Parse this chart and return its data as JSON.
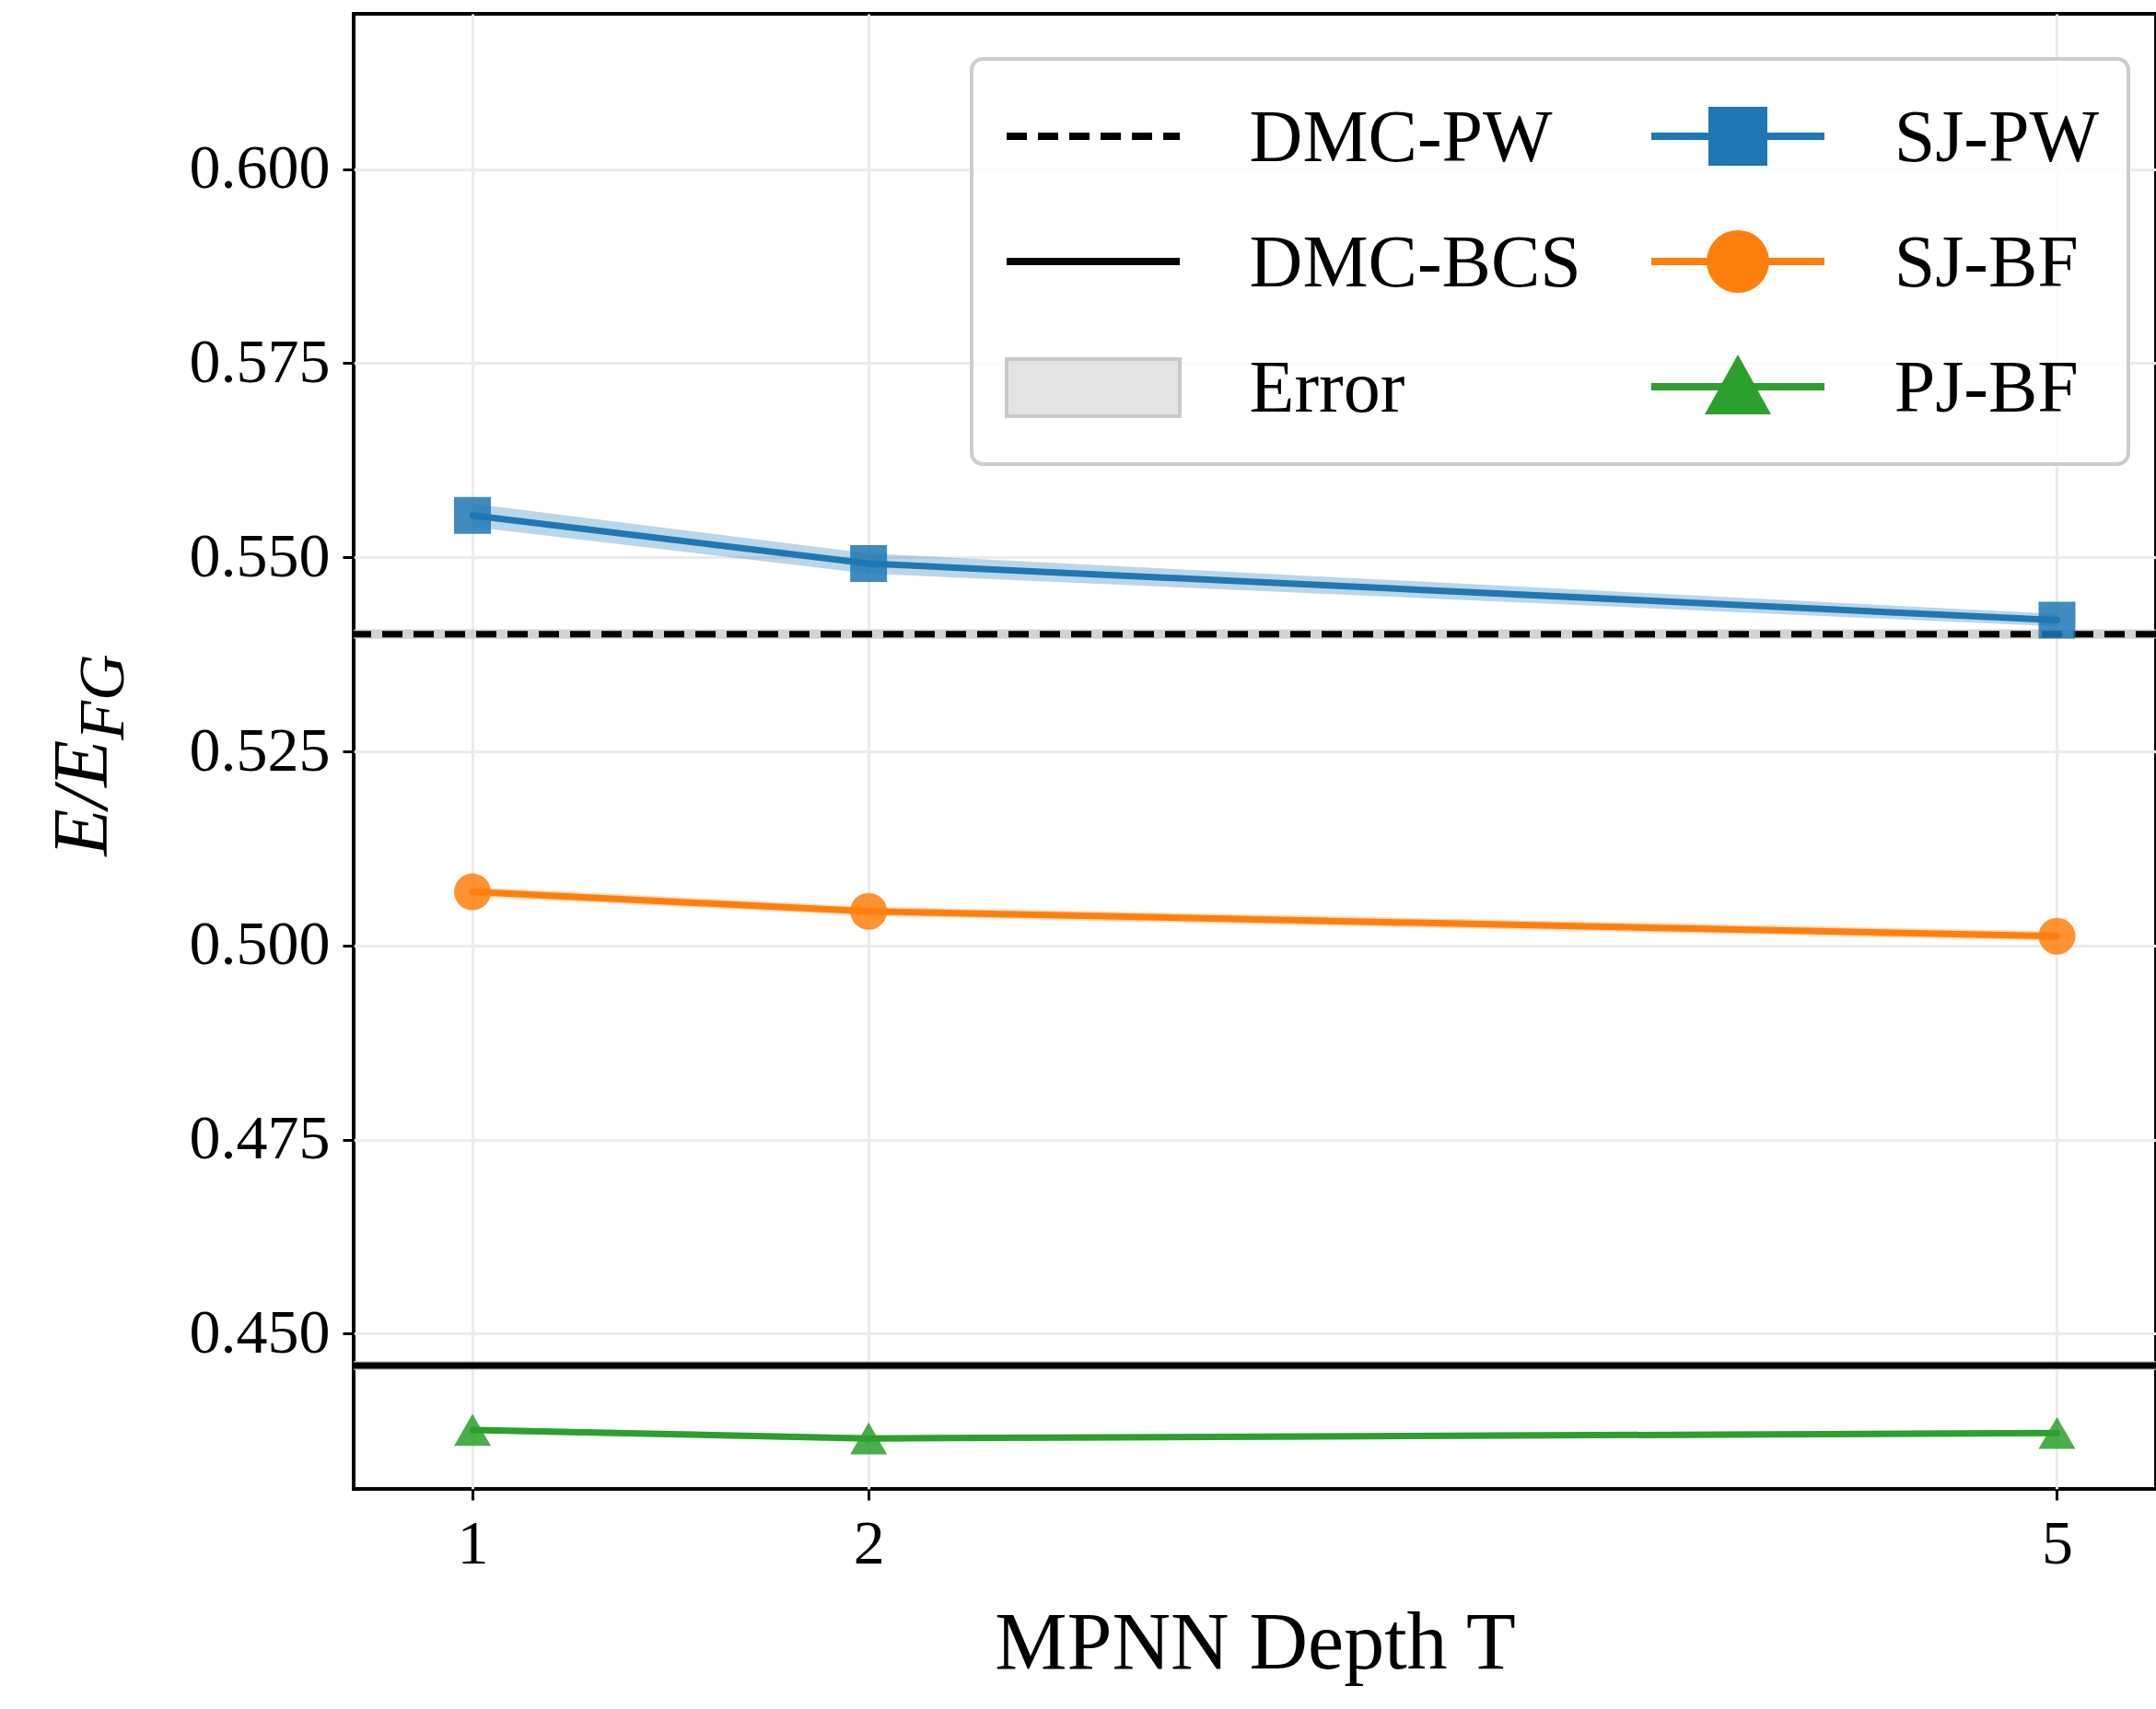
{
  "chart_data": {
    "type": "line",
    "xlabel": "MPNN Depth T",
    "ylabel": "E/E$_{FG}$",
    "x": [
      1,
      2,
      5
    ],
    "series": [
      {
        "name": "SJ-PW",
        "color": "#1f77b4",
        "marker": "square",
        "values": [
          0.5554,
          0.5492,
          0.5419
        ],
        "lower": [
          0.5539,
          0.5479,
          0.5411
        ],
        "upper": [
          0.5569,
          0.5505,
          0.5427
        ]
      },
      {
        "name": "SJ-BF",
        "color": "#ff7f0e",
        "marker": "circle",
        "values": [
          0.5069,
          0.5044,
          0.5012
        ],
        "lower": [
          0.5063,
          0.5038,
          0.5006
        ],
        "upper": [
          0.5075,
          0.505,
          0.5018
        ]
      },
      {
        "name": "PJ-BF",
        "color": "#2ca02c",
        "marker": "triangle",
        "values": [
          0.4376,
          0.4365,
          0.4372
        ],
        "lower": [
          0.4372,
          0.4361,
          0.4368
        ],
        "upper": [
          0.438,
          0.4369,
          0.4376
        ]
      }
    ],
    "ref_lines": [
      {
        "axis": "y",
        "value": 0.5401,
        "label": "DMC-PW",
        "color": "#000000",
        "line_style": "dashed"
      },
      {
        "axis": "y",
        "value": 0.4459,
        "label": "DMC-BCS",
        "color": "#000000",
        "line_style": "solid"
      }
    ],
    "bands": [
      {
        "axis": "y",
        "from": 0.5395,
        "to": 0.5407,
        "label": "Error",
        "color": "#c8c8c8"
      },
      {
        "axis": "y",
        "from": 0.4453,
        "to": 0.4465,
        "color": "#c8c8c8"
      }
    ],
    "xlim": [
      0.7,
      5.25
    ],
    "xticks": [
      1,
      2,
      5
    ],
    "ylim": [
      0.43,
      0.62
    ],
    "yticks": [
      {
        "value": 0.45,
        "label": "0.450"
      },
      {
        "value": 0.475,
        "label": "0.475"
      },
      {
        "value": 0.5,
        "label": "0.500"
      },
      {
        "value": 0.525,
        "label": "0.525"
      },
      {
        "value": 0.55,
        "label": "0.550"
      },
      {
        "value": 0.575,
        "label": "0.575"
      },
      {
        "value": 0.6,
        "label": "0.600"
      }
    ],
    "grid": true,
    "legend": "top right",
    "line_style": "solid"
  }
}
